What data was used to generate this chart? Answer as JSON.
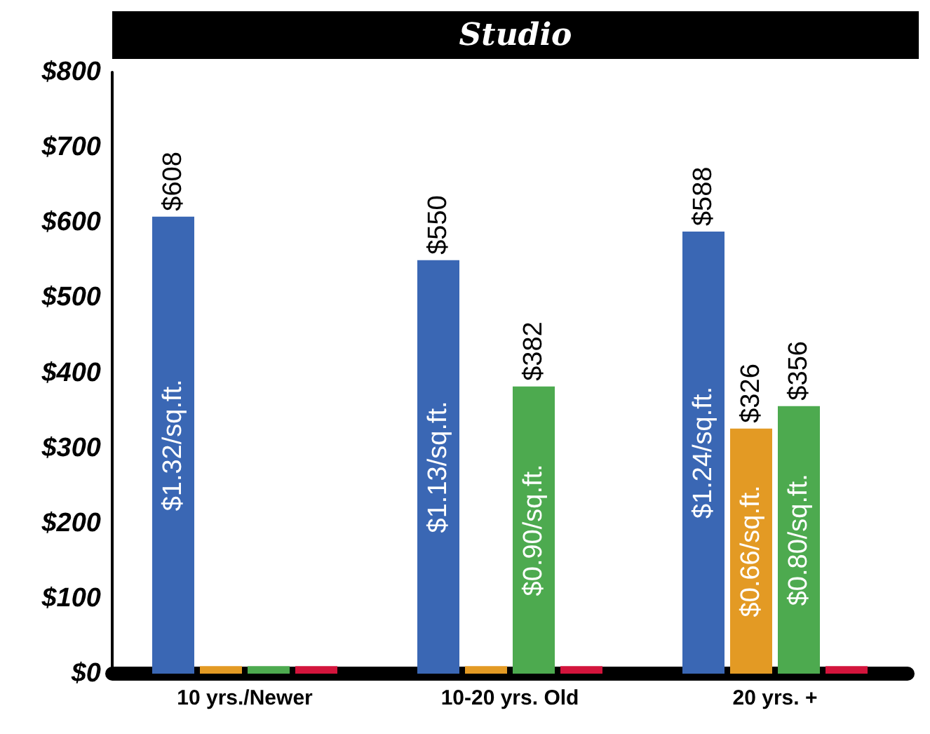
{
  "chart_data": {
    "type": "bar",
    "title": "Studio",
    "categories": [
      "10 yrs./Newer",
      "10-20 yrs. Old",
      "20 yrs. +"
    ],
    "series": [
      {
        "color": "#3a67b4",
        "values": [
          608,
          550,
          588
        ],
        "value_labels": [
          "$608",
          "$550",
          "$588"
        ]
      },
      {
        "color": "#e39a24",
        "values": [
          10,
          10,
          326
        ],
        "value_labels": [
          null,
          null,
          "$326"
        ]
      },
      {
        "color": "#4daa4f",
        "values": [
          10,
          382,
          356
        ],
        "value_labels": [
          null,
          "$382",
          "$356"
        ]
      },
      {
        "color": "#d3143c",
        "values": [
          10,
          10,
          10
        ],
        "value_labels": [
          null,
          null,
          null
        ]
      }
    ],
    "annotations": [
      "$1.32/sq.ft.",
      "$1.13/sq.ft.",
      "$0.90/sq.ft.",
      "$1.24/sq.ft.",
      "$0.66/sq.ft.",
      "$0.80/sq.ft."
    ],
    "ylim": [
      0,
      800
    ],
    "yticks": [
      {
        "value": 0,
        "label": "$0"
      },
      {
        "value": 100,
        "label": "$100"
      },
      {
        "value": 200,
        "label": "$200"
      },
      {
        "value": 300,
        "label": "$300"
      },
      {
        "value": 400,
        "label": "$400"
      },
      {
        "value": 500,
        "label": "$500"
      },
      {
        "value": 600,
        "label": "$600"
      },
      {
        "value": 700,
        "label": "$700"
      },
      {
        "value": 800,
        "label": "$800"
      }
    ],
    "grid": false
  }
}
